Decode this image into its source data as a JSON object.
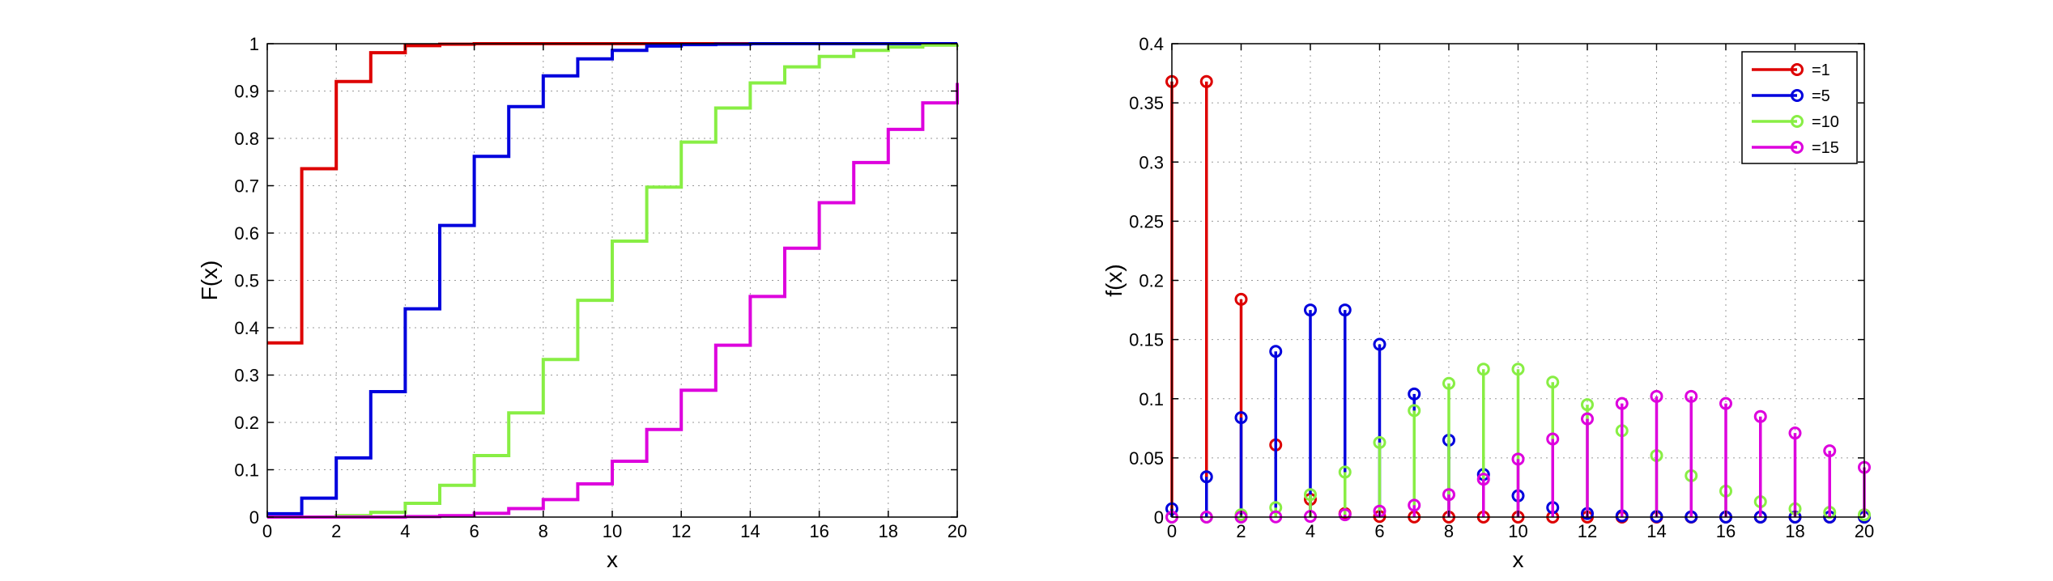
{
  "chart_data": [
    {
      "type": "line",
      "subtype": "step (cumulative distribution)",
      "xlabel": "x",
      "ylabel": "F(x)",
      "xlim": [
        0,
        20
      ],
      "ylim": [
        0,
        1
      ],
      "xticks": [
        0,
        2,
        4,
        6,
        8,
        10,
        12,
        14,
        16,
        18,
        20
      ],
      "yticks": [
        0,
        0.1,
        0.2,
        0.3,
        0.4,
        0.5,
        0.6,
        0.7,
        0.8,
        0.9,
        1
      ],
      "ytick_labels": [
        "0",
        "0.1",
        "0.2",
        "0.3",
        "0.4",
        "0.5",
        "0.6",
        "0.7",
        "0.8",
        "0.9",
        "1"
      ],
      "grid": true,
      "x": [
        0,
        1,
        2,
        3,
        4,
        5,
        6,
        7,
        8,
        9,
        10,
        11,
        12,
        13,
        14,
        15,
        16,
        17,
        18,
        19,
        20
      ],
      "series": [
        {
          "color": "#dd0000",
          "values": [
            0.368,
            0.736,
            0.92,
            0.981,
            0.996,
            0.999,
            1,
            1,
            1,
            1,
            1,
            1,
            1,
            1,
            1,
            1,
            1,
            1,
            1,
            1,
            1
          ]
        },
        {
          "color": "#0000dd",
          "values": [
            0.007,
            0.04,
            0.125,
            0.265,
            0.44,
            0.616,
            0.762,
            0.867,
            0.932,
            0.968,
            0.986,
            0.995,
            0.998,
            0.999,
            1,
            1,
            1,
            1,
            1,
            1,
            1
          ]
        },
        {
          "color": "#88ee44",
          "values": [
            0,
            0,
            0.003,
            0.01,
            0.029,
            0.067,
            0.13,
            0.22,
            0.333,
            0.458,
            0.583,
            0.697,
            0.792,
            0.864,
            0.917,
            0.951,
            0.973,
            0.986,
            0.993,
            0.997,
            0.998
          ]
        },
        {
          "color": "#dd00dd",
          "values": [
            0,
            0,
            0,
            0,
            0.001,
            0.003,
            0.008,
            0.018,
            0.037,
            0.07,
            0.118,
            0.185,
            0.268,
            0.363,
            0.466,
            0.568,
            0.664,
            0.749,
            0.819,
            0.875,
            0.917
          ]
        }
      ]
    },
    {
      "type": "stem",
      "subtype": "probability mass function",
      "xlabel": "x",
      "ylabel": "f(x)",
      "xlim": [
        0,
        20
      ],
      "ylim": [
        0,
        0.4
      ],
      "xticks": [
        0,
        2,
        4,
        6,
        8,
        10,
        12,
        14,
        16,
        18,
        20
      ],
      "yticks": [
        0,
        0.05,
        0.1,
        0.15,
        0.2,
        0.25,
        0.3,
        0.35,
        0.4
      ],
      "ytick_labels": [
        "0",
        "0.05",
        "0.1",
        "0.15",
        "0.2",
        "0.25",
        "0.3",
        "0.35",
        "0.4"
      ],
      "grid": true,
      "legend_position": "top-right",
      "x": [
        0,
        1,
        2,
        3,
        4,
        5,
        6,
        7,
        8,
        9,
        10,
        11,
        12,
        13,
        14,
        15,
        16,
        17,
        18,
        19,
        20
      ],
      "series": [
        {
          "name": "=1",
          "color": "#dd0000",
          "values": [
            0.368,
            0.368,
            0.184,
            0.061,
            0.015,
            0.003,
            0.0005,
            0.0001,
            0,
            0,
            0,
            0,
            0,
            0,
            0,
            0,
            0,
            0,
            0,
            0,
            0
          ]
        },
        {
          "name": "=5",
          "color": "#0000dd",
          "values": [
            0.007,
            0.034,
            0.084,
            0.14,
            0.175,
            0.175,
            0.146,
            0.104,
            0.065,
            0.036,
            0.018,
            0.008,
            0.003,
            0.001,
            0.0005,
            0.0002,
            0,
            0,
            0,
            0,
            0
          ]
        },
        {
          "name": "=10",
          "color": "#88ee44",
          "values": [
            0,
            0,
            0.002,
            0.008,
            0.019,
            0.038,
            0.063,
            0.09,
            0.113,
            0.125,
            0.125,
            0.114,
            0.095,
            0.073,
            0.052,
            0.035,
            0.022,
            0.013,
            0.007,
            0.004,
            0.002
          ]
        },
        {
          "name": "=15",
          "color": "#dd00dd",
          "values": [
            0,
            0,
            0,
            0.0002,
            0.0006,
            0.002,
            0.005,
            0.01,
            0.019,
            0.032,
            0.049,
            0.066,
            0.083,
            0.096,
            0.102,
            0.102,
            0.096,
            0.085,
            0.071,
            0.056,
            0.042
          ]
        }
      ]
    }
  ]
}
